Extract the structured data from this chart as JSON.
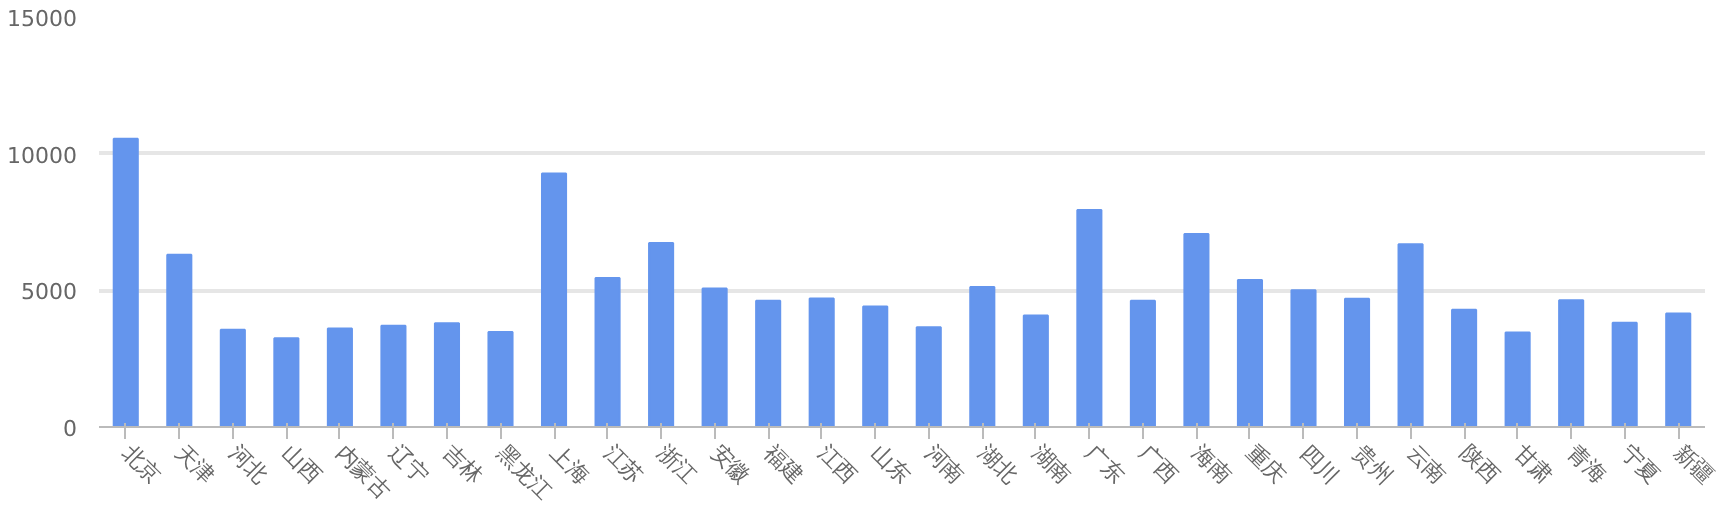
{
  "chart_data": {
    "type": "bar",
    "categories": [
      "北京",
      "天津",
      "河北",
      "山西",
      "内蒙古",
      "辽宁",
      "吉林",
      "黑龙江",
      "上海",
      "江苏",
      "浙江",
      "安徽",
      "福建",
      "江西",
      "山东",
      "河南",
      "湖北",
      "湖南",
      "广东",
      "广西",
      "海南",
      "重庆",
      "四川",
      "贵州",
      "云南",
      "陕西",
      "甘肃",
      "青海",
      "宁夏",
      "新疆"
    ],
    "values": [
      10550,
      6300,
      3560,
      3250,
      3600,
      3700,
      3800,
      3480,
      9270,
      5450,
      6730,
      5070,
      4620,
      4700,
      4410,
      3650,
      5120,
      4080,
      7940,
      4620,
      7060,
      5380,
      5000,
      4690,
      6690,
      4290,
      3460,
      4640,
      3810,
      4150
    ],
    "color": "#6495ed",
    "ylim": [
      0,
      15000
    ],
    "yticks": [
      0,
      5000,
      10000,
      15000
    ],
    "grid": "y"
  }
}
